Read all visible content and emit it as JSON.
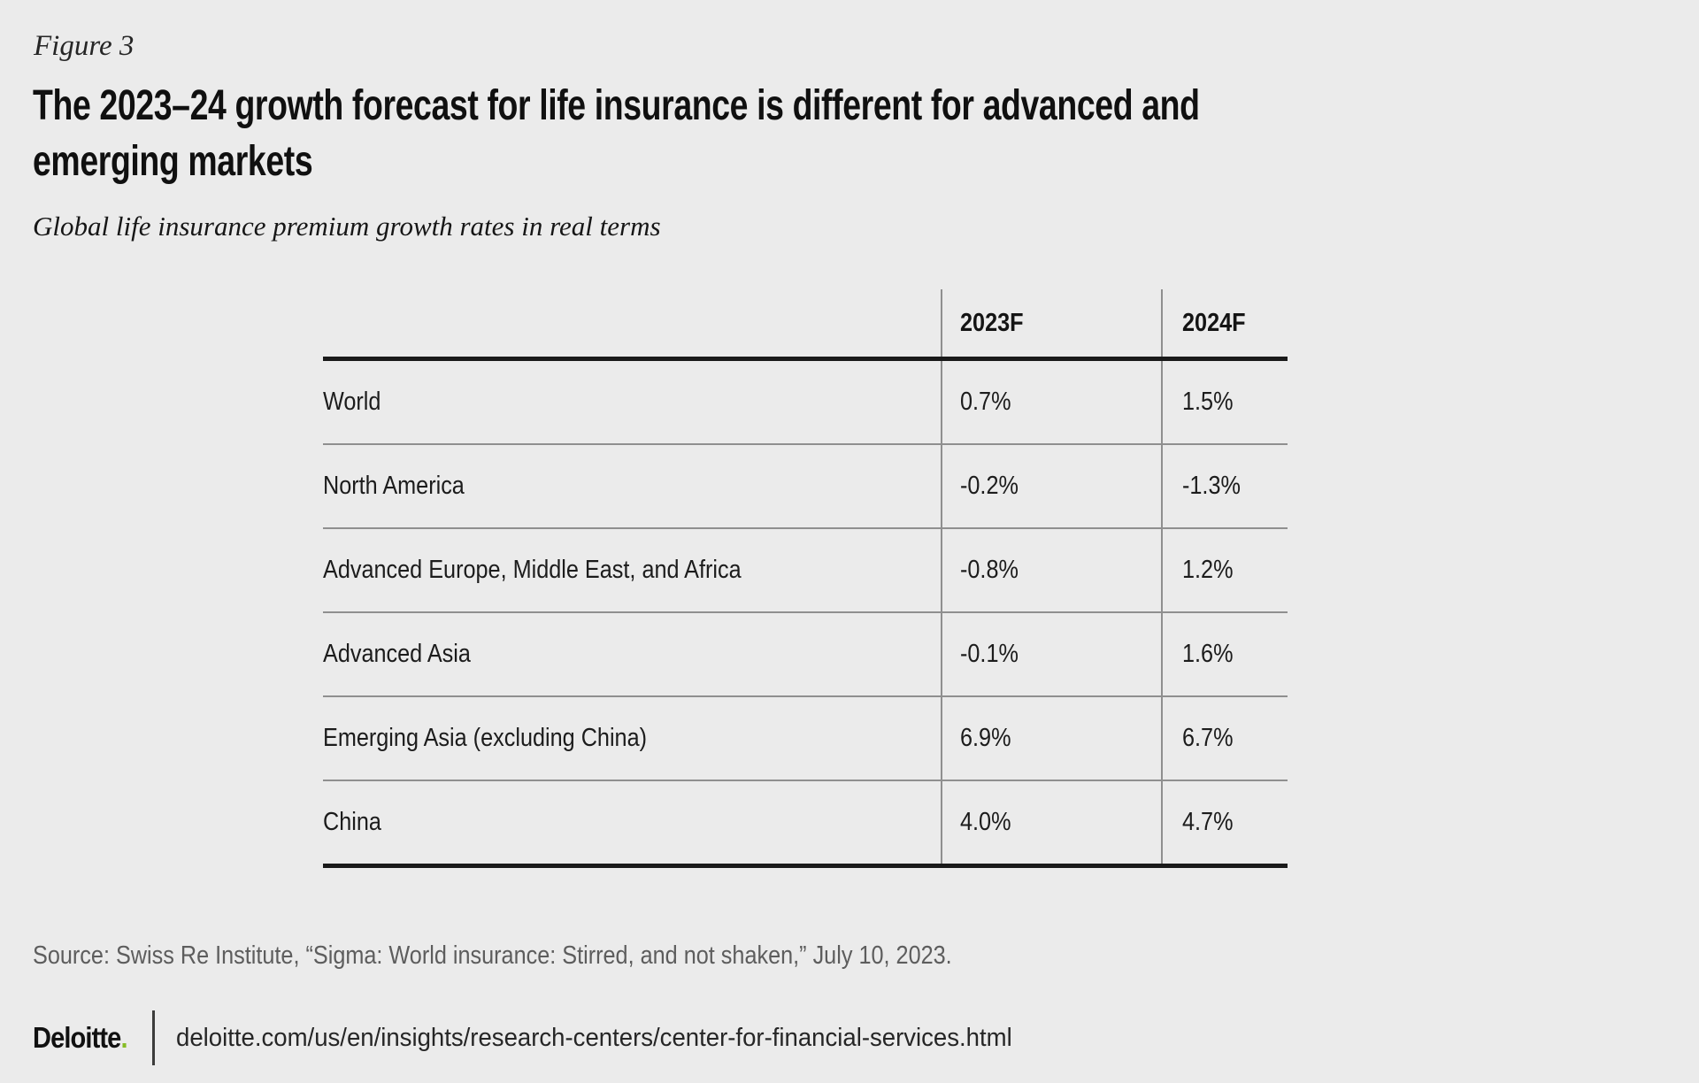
{
  "figure_label": "Figure 3",
  "title_lines": [
    "The 2023–24 growth forecast for life insurance is different for advanced and",
    "emerging markets"
  ],
  "chart_data": {
    "type": "table",
    "title": "The 2023–24 growth forecast for life insurance is different for advanced and emerging markets",
    "subtitle": "Global life insurance premium growth rates in real terms",
    "columns": [
      "2023F",
      "2024F"
    ],
    "rows": [
      {
        "label": "World",
        "values": [
          "0.7%",
          "1.5%"
        ]
      },
      {
        "label": "North America",
        "values": [
          "-0.2%",
          "-1.3%"
        ]
      },
      {
        "label": "Advanced Europe, Middle East, and Africa",
        "values": [
          "-0.8%",
          "1.2%"
        ]
      },
      {
        "label": "Advanced Asia",
        "values": [
          "-0.1%",
          "1.6%"
        ]
      },
      {
        "label": "Emerging Asia (excluding China)",
        "values": [
          "6.9%",
          "6.7%"
        ]
      },
      {
        "label": "China",
        "values": [
          "4.0%",
          "4.7%"
        ]
      }
    ],
    "source": "Source: Swiss Re Institute, “Sigma: World insurance: Stirred, and not shaken,” July 10, 2023.",
    "legend_position": "none",
    "grid": "horizontal-and-vertical-rules"
  },
  "footer": {
    "brand": "Deloitte",
    "brand_dot": ".",
    "url": "deloitte.com/us/en/insights/research-centers/center-for-financial-services.html"
  },
  "colors": {
    "background": "#ebebeb",
    "heavy_rule": "#1a1a1a",
    "light_rule": "#8f8f8f",
    "source_text": "#5d5d5d",
    "brand_green": "#86bc25"
  }
}
